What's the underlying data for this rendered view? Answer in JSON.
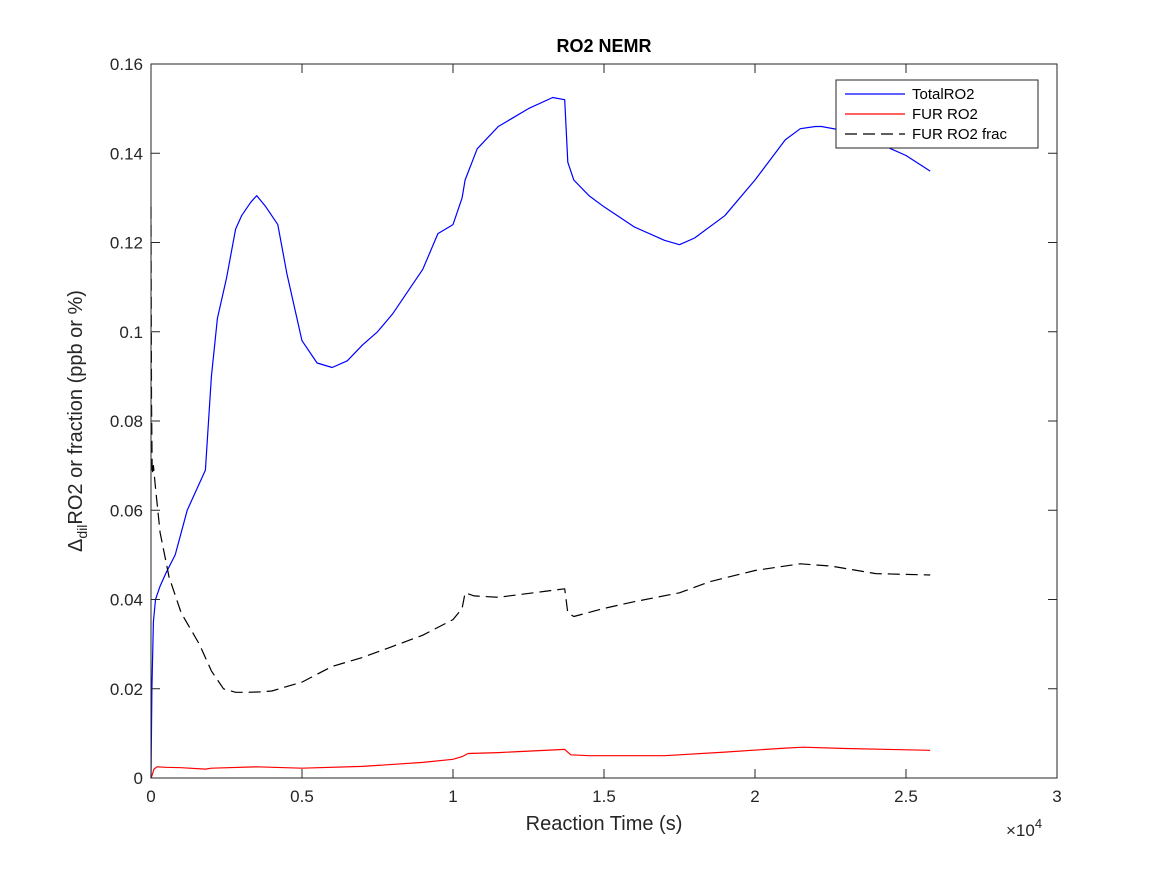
{
  "chart_data": {
    "type": "line",
    "title": "RO2 NEMR",
    "xlabel": "Reaction Time (s)",
    "ylabel_prefix": "Δ",
    "ylabel_sub": "dil",
    "ylabel_main": "RO2 or fraction (ppb or %)",
    "x_exponent_base": "×10",
    "x_exponent_power": "4",
    "xlim": [
      0,
      30000
    ],
    "ylim": [
      0,
      0.16
    ],
    "xticks": [
      0,
      5000,
      10000,
      15000,
      20000,
      25000,
      30000
    ],
    "xtick_labels": [
      "0",
      "0.5",
      "1",
      "1.5",
      "2",
      "2.5",
      "3"
    ],
    "yticks": [
      0,
      0.02,
      0.04,
      0.06,
      0.08,
      0.1,
      0.12,
      0.14,
      0.16
    ],
    "ytick_labels": [
      "0",
      "0.02",
      "0.04",
      "0.06",
      "0.08",
      "0.1",
      "0.12",
      "0.14",
      "0.16"
    ],
    "grid": false,
    "legend_position": "top-right",
    "series": [
      {
        "name": "TotalRO2",
        "color": "#0000ff",
        "style": "solid",
        "x": [
          0,
          30,
          80,
          150,
          300,
          500,
          800,
          1200,
          1800,
          2000,
          2200,
          2500,
          2800,
          3000,
          3300,
          3500,
          3800,
          4200,
          4500,
          5000,
          5500,
          6000,
          6500,
          7000,
          7500,
          8000,
          8500,
          9000,
          9500,
          10000,
          10300,
          10400,
          10800,
          11500,
          12500,
          13300,
          13700,
          13800,
          14000,
          14500,
          15000,
          16000,
          17000,
          17500,
          18000,
          19000,
          20000,
          21000,
          21500,
          22000,
          22200,
          23000,
          24000,
          25000,
          25800
        ],
        "y": [
          0.0,
          0.02,
          0.035,
          0.04,
          0.043,
          0.046,
          0.05,
          0.06,
          0.069,
          0.09,
          0.103,
          0.112,
          0.123,
          0.126,
          0.129,
          0.1305,
          0.128,
          0.124,
          0.113,
          0.098,
          0.093,
          0.092,
          0.0935,
          0.097,
          0.1,
          0.104,
          0.109,
          0.114,
          0.122,
          0.124,
          0.13,
          0.134,
          0.141,
          0.146,
          0.15,
          0.1525,
          0.152,
          0.138,
          0.134,
          0.1305,
          0.128,
          0.1235,
          0.1205,
          0.1195,
          0.121,
          0.126,
          0.134,
          0.143,
          0.1455,
          0.146,
          0.146,
          0.145,
          0.1425,
          0.1395,
          0.136
        ]
      },
      {
        "name": "FUR RO2",
        "color": "#ff0000",
        "style": "solid",
        "x": [
          0,
          30,
          100,
          200,
          500,
          1000,
          1800,
          2000,
          3500,
          5000,
          7000,
          9000,
          10000,
          10300,
          10500,
          11500,
          13700,
          13900,
          14500,
          17000,
          19000,
          21000,
          21600,
          23000,
          25800
        ],
        "y": [
          0.0,
          0.0005,
          0.002,
          0.0025,
          0.0024,
          0.0023,
          0.002,
          0.0022,
          0.0025,
          0.0022,
          0.0026,
          0.0035,
          0.0042,
          0.0048,
          0.0055,
          0.0057,
          0.0064,
          0.0052,
          0.005,
          0.005,
          0.0058,
          0.0067,
          0.0069,
          0.0066,
          0.0062
        ]
      },
      {
        "name": "FUR RO2 frac",
        "color": "#000000",
        "style": "dashed",
        "x": [
          0,
          15,
          40,
          80,
          150,
          300,
          600,
          1000,
          1600,
          2000,
          2400,
          2800,
          3200,
          3600,
          4000,
          5000,
          6000,
          7000,
          8000,
          9000,
          10000,
          10300,
          10400,
          10700,
          11500,
          13000,
          13700,
          13800,
          14000,
          15000,
          16000,
          17500,
          18500,
          20000,
          21500,
          22500,
          24000,
          25800
        ],
        "y": [
          0.128,
          0.085,
          0.068,
          0.07,
          0.065,
          0.055,
          0.045,
          0.037,
          0.03,
          0.024,
          0.02,
          0.0192,
          0.0192,
          0.0193,
          0.0195,
          0.0215,
          0.025,
          0.027,
          0.0295,
          0.032,
          0.0355,
          0.038,
          0.0415,
          0.0408,
          0.0405,
          0.0418,
          0.0424,
          0.037,
          0.0362,
          0.038,
          0.0395,
          0.0415,
          0.044,
          0.0465,
          0.048,
          0.0475,
          0.0458,
          0.0455
        ]
      }
    ]
  }
}
